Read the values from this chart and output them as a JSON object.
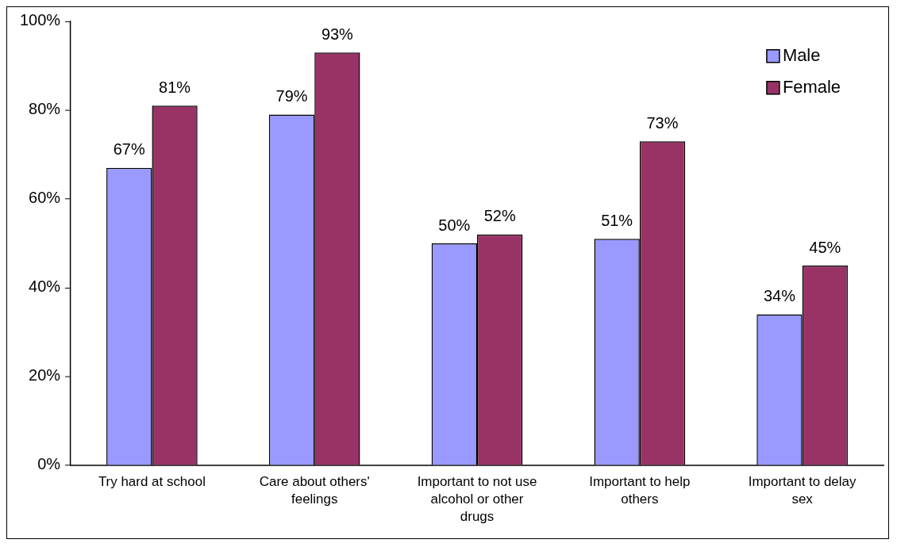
{
  "chart_data": {
    "type": "bar",
    "categories": [
      "Try hard at school",
      "Care about others' feelings",
      "Important to not use alcohol or other drugs",
      "Important to help others",
      "Important to delay sex"
    ],
    "series": [
      {
        "name": "Male",
        "color": "#9999ff",
        "values": [
          67,
          79,
          50,
          51,
          34
        ],
        "value_labels": [
          "67%",
          "79%",
          "50%",
          "51%",
          "34%"
        ]
      },
      {
        "name": "Female",
        "color": "#993366",
        "values": [
          81,
          93,
          52,
          73,
          45
        ],
        "value_labels": [
          "81%",
          "93%",
          "52%",
          "73%",
          "45%"
        ]
      }
    ],
    "ylim": [
      0,
      100
    ],
    "yticks": [
      {
        "value": 0,
        "label": "0%"
      },
      {
        "value": 20,
        "label": "20%"
      },
      {
        "value": 40,
        "label": "40%"
      },
      {
        "value": 60,
        "label": "60%"
      },
      {
        "value": 80,
        "label": "80%"
      },
      {
        "value": 100,
        "label": "100%"
      }
    ],
    "grid": false,
    "legend": "top right"
  }
}
